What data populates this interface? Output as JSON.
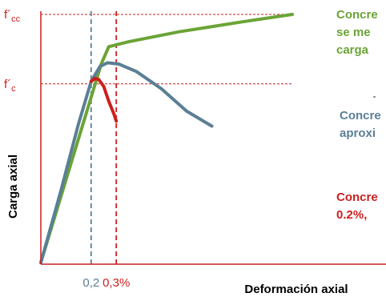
{
  "chart_data": {
    "type": "line",
    "xlabel": "Deformación axial",
    "ylabel": "Carga axial",
    "x_ticks": [
      {
        "label": "0,2",
        "value": 0.2,
        "color": "#5b7f95"
      },
      {
        "label": "0,3%",
        "value": 0.3,
        "color": "#cc1f1f"
      }
    ],
    "y_ticks": [
      {
        "label": "f´cc",
        "base": "f´",
        "sub": "cc",
        "key": "fcc",
        "color": "#cc1f1f"
      },
      {
        "label": "f´c",
        "base": "f´",
        "sub": "c",
        "key": "fc",
        "color": "#cc1f1f"
      }
    ],
    "xlim": [
      0,
      1.05
    ],
    "ylim": [
      0,
      1.05
    ],
    "grid": false,
    "reference_lines": [
      {
        "axis": "y",
        "key": "fcc",
        "value": 1.0,
        "color": "#cc1f1f",
        "style": "dashed"
      },
      {
        "axis": "y",
        "key": "fc",
        "value": 0.72,
        "color": "#cc1f1f",
        "style": "dashed"
      },
      {
        "axis": "x",
        "value": 0.2,
        "color": "#5b7f95",
        "style": "dashed"
      },
      {
        "axis": "x",
        "value": 0.3,
        "color": "#cc1f1f",
        "style": "dashed"
      }
    ],
    "series": [
      {
        "key": "confined",
        "color": "#6aa436",
        "points": [
          [
            0,
            0
          ],
          [
            0.24,
            0.8
          ],
          [
            0.27,
            0.87
          ],
          [
            0.35,
            0.89
          ],
          [
            0.55,
            0.93
          ],
          [
            0.8,
            0.97
          ],
          [
            1.0,
            1.0
          ]
        ]
      },
      {
        "key": "rectangular",
        "color": "#5b7f95",
        "points": [
          [
            0,
            0
          ],
          [
            0.08,
            0.29
          ],
          [
            0.15,
            0.56
          ],
          [
            0.2,
            0.73
          ],
          [
            0.235,
            0.79
          ],
          [
            0.265,
            0.805
          ],
          [
            0.31,
            0.8
          ],
          [
            0.38,
            0.77
          ],
          [
            0.48,
            0.7
          ],
          [
            0.58,
            0.61
          ],
          [
            0.68,
            0.55
          ]
        ]
      },
      {
        "key": "unconfined",
        "color": "#cc1f1f",
        "points": [
          [
            0.2,
            0.73
          ],
          [
            0.215,
            0.742
          ],
          [
            0.23,
            0.738
          ],
          [
            0.25,
            0.71
          ],
          [
            0.27,
            0.65
          ],
          [
            0.29,
            0.6
          ],
          [
            0.3,
            0.57
          ]
        ]
      }
    ]
  },
  "annotations": {
    "confined": {
      "lines": [
        "Concre",
        "se me",
        "carga"
      ],
      "color": "#6aa436"
    },
    "rectangular": {
      "lines": [
        "Concre",
        "aproxi"
      ],
      "color": "#5b7f95"
    },
    "unconfined": {
      "lines": [
        "Concre",
        "0.2%, "
      ],
      "color": "#cc1f1f"
    }
  }
}
